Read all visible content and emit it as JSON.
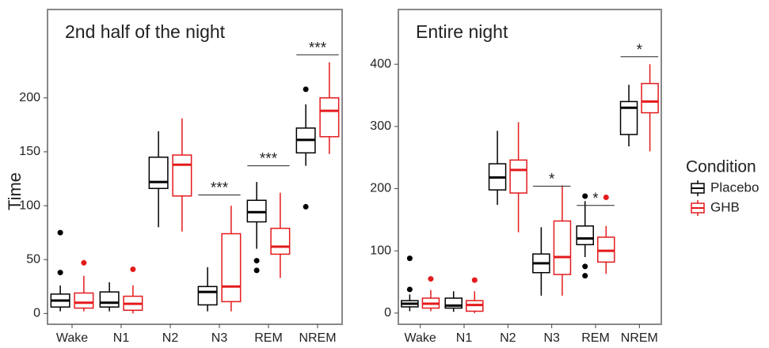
{
  "chart_data": [
    {
      "type": "box",
      "title": "2nd half of the night",
      "ylabel": "Time",
      "categories": [
        "Wake",
        "N1",
        "N2",
        "N3",
        "REM",
        "NREM"
      ],
      "ylim": [
        -10,
        282
      ],
      "yticks": [
        0,
        50,
        100,
        150,
        200
      ],
      "series": [
        {
          "name": "Placebo",
          "color": "#000000",
          "boxes": [
            {
              "low": 2,
              "q1": 6,
              "median": 12,
              "q3": 18,
              "high": 26,
              "outliers": [
                75,
                38
              ]
            },
            {
              "low": 2,
              "q1": 6,
              "median": 10,
              "q3": 20,
              "high": 29,
              "outliers": []
            },
            {
              "low": 80,
              "q1": 116,
              "median": 122,
              "q3": 145,
              "high": 169,
              "outliers": []
            },
            {
              "low": 2,
              "q1": 8,
              "median": 20,
              "q3": 25,
              "high": 43,
              "outliers": []
            },
            {
              "low": 60,
              "q1": 85,
              "median": 94,
              "q3": 105,
              "high": 122,
              "outliers": [
                49,
                40
              ]
            },
            {
              "low": 137,
              "q1": 149,
              "median": 161,
              "q3": 172,
              "high": 194,
              "outliers": [
                208,
                99
              ]
            }
          ]
        },
        {
          "name": "GHB",
          "color": "#e41a1c",
          "boxes": [
            {
              "low": 2,
              "q1": 5,
              "median": 10,
              "q3": 19,
              "high": 35,
              "outliers": [
                47
              ]
            },
            {
              "low": 0,
              "q1": 3,
              "median": 9,
              "q3": 16,
              "high": 26,
              "outliers": [
                41
              ]
            },
            {
              "low": 76,
              "q1": 109,
              "median": 138,
              "q3": 147,
              "high": 181,
              "outliers": []
            },
            {
              "low": 2,
              "q1": 11,
              "median": 25,
              "q3": 74,
              "high": 100,
              "outliers": []
            },
            {
              "low": 33,
              "q1": 55,
              "median": 62,
              "q3": 79,
              "high": 112,
              "outliers": []
            },
            {
              "low": 148,
              "q1": 164,
              "median": 188,
              "q3": 200,
              "high": 233,
              "outliers": []
            }
          ]
        }
      ],
      "significance": [
        null,
        null,
        null,
        "***",
        "***",
        "***"
      ],
      "significance_y": [
        null,
        null,
        null,
        110,
        137,
        240
      ]
    },
    {
      "type": "box",
      "title": "Entire night",
      "categories": [
        "Wake",
        "N1",
        "N2",
        "N3",
        "REM",
        "NREM"
      ],
      "ylim": [
        -18,
        488
      ],
      "yticks": [
        0,
        100,
        200,
        300,
        400
      ],
      "legend_title": "Condition",
      "series": [
        {
          "name": "Placebo",
          "color": "#000000",
          "boxes": [
            {
              "low": 3,
              "q1": 10,
              "median": 15,
              "q3": 20,
              "high": 30,
              "outliers": [
                88,
                38
              ]
            },
            {
              "low": 2,
              "q1": 8,
              "median": 12,
              "q3": 24,
              "high": 35,
              "outliers": []
            },
            {
              "low": 174,
              "q1": 198,
              "median": 218,
              "q3": 240,
              "high": 293,
              "outliers": []
            },
            {
              "low": 28,
              "q1": 65,
              "median": 80,
              "q3": 95,
              "high": 138,
              "outliers": []
            },
            {
              "low": 90,
              "q1": 110,
              "median": 120,
              "q3": 140,
              "high": 180,
              "outliers": [
                188,
                75,
                60
              ]
            },
            {
              "low": 268,
              "q1": 287,
              "median": 330,
              "q3": 340,
              "high": 367,
              "outliers": []
            }
          ]
        },
        {
          "name": "GHB",
          "color": "#e41a1c",
          "boxes": [
            {
              "low": 3,
              "q1": 8,
              "median": 15,
              "q3": 24,
              "high": 37,
              "outliers": [
                55
              ]
            },
            {
              "low": 0,
              "q1": 3,
              "median": 13,
              "q3": 20,
              "high": 35,
              "outliers": [
                53
              ]
            },
            {
              "low": 130,
              "q1": 193,
              "median": 230,
              "q3": 246,
              "high": 307,
              "outliers": []
            },
            {
              "low": 28,
              "q1": 62,
              "median": 90,
              "q3": 148,
              "high": 205,
              "outliers": []
            },
            {
              "low": 63,
              "q1": 82,
              "median": 100,
              "q3": 122,
              "high": 140,
              "outliers": [
                186
              ]
            },
            {
              "low": 260,
              "q1": 322,
              "median": 340,
              "q3": 369,
              "high": 400,
              "outliers": []
            }
          ]
        }
      ],
      "significance": [
        null,
        null,
        null,
        "*",
        "*",
        "*"
      ],
      "significance_y": [
        null,
        null,
        null,
        204,
        173,
        412
      ]
    }
  ]
}
